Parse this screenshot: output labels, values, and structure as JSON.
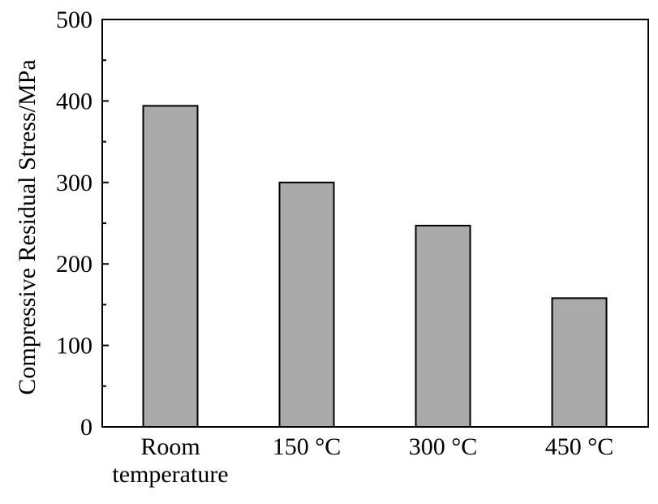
{
  "chart_data": {
    "type": "bar",
    "categories": [
      [
        "Room",
        "temperature"
      ],
      [
        "150 °C"
      ],
      [
        "300 °C"
      ],
      [
        "450 °C"
      ]
    ],
    "values": [
      394,
      300,
      247,
      158
    ],
    "ylabel": "Compressive Residual Stress/MPa",
    "xlabel": "",
    "ylim": [
      0,
      500
    ],
    "yticks": [
      0,
      100,
      200,
      300,
      400,
      500
    ],
    "grid": false,
    "bar_color": "#aaaaaa",
    "bar_edge_color": "#000000"
  }
}
